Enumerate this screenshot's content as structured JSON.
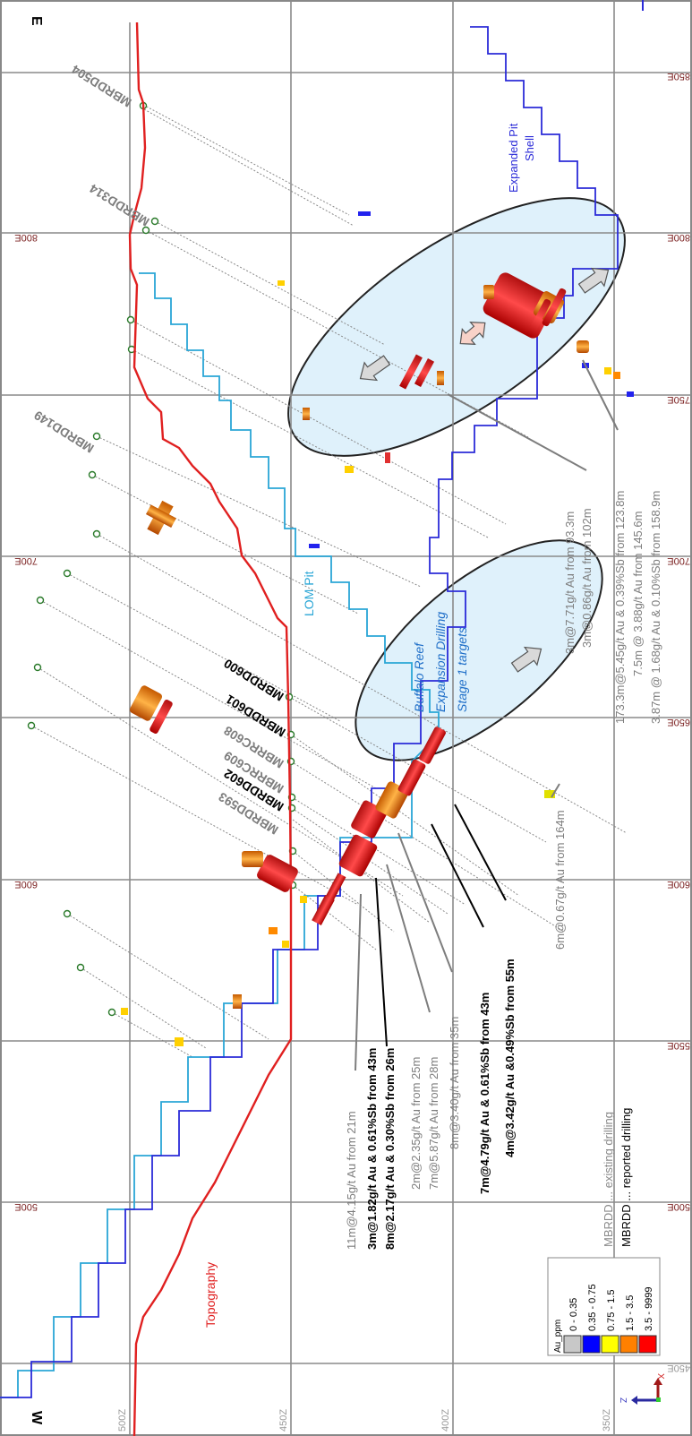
{
  "orientation": {
    "west": "W",
    "east": "E"
  },
  "eastings": [
    "850E",
    "800E",
    "750E",
    "700E",
    "650E",
    "600E",
    "550E",
    "500E",
    "450E"
  ],
  "elevations": [
    "500Z",
    "450Z",
    "400Z",
    "350Z"
  ],
  "features": {
    "topography": "Topography",
    "lom_pit": "LOM Pit",
    "expanded_pit_line1": "Expanded Pit",
    "expanded_pit_line2": "Shell",
    "target_line1": "Buffalo Reef",
    "target_line2": "Expansion Drilling",
    "target_line3": "Stage 1 targets"
  },
  "drillholes": {
    "d504": "MBRDD504",
    "d314": "MBRDD314",
    "d149": "MBRDD149",
    "d600": "MBRDD600",
    "d601": "MBRDD601",
    "rc608": "MBRRC608",
    "rc609": "MBRRC609",
    "d602": "MBRDD602",
    "d593": "MBRDD593"
  },
  "intercepts": {
    "i1": "11m@4.15g/t Au from 21m",
    "i2": "3m@1.82g/t Au & 0.61%Sb from 43m",
    "i3": "8m@2.17g/t Au & 0.30%Sb from 26m",
    "i4": "2m@2.35g/t Au from 25m",
    "i5": "7m@5.87g/t Au from 28m",
    "i6": "8m@3.40g/t Au from 35m",
    "i7": "7m@4.79g/t Au & 0.61%Sb from 43m",
    "i8": "4m@3.42g/t Au &0.49%Sb from 55m",
    "i9": "6m@0.67g/t Au from 164m",
    "i10": "3m@7.71g/t Au from 93.3m",
    "i11": "3m@0.86g/t Au from 102m",
    "i12": "173.3m@5.45g/t Au & 0.39%Sb from 123.8m",
    "i13": "7.5m @ 3.88g/t Au from 145.6m",
    "i14": "3.87m @ 1.68g/t Au & 0.10%Sb from 158.9m"
  },
  "key": {
    "existing": "MBRDD ... existing drilling",
    "reported": "MBRDD ... reported drilling"
  },
  "legend": {
    "title": "Au_ppm",
    "items": [
      {
        "label": "0 - 0.35",
        "color": "#c8c8c8"
      },
      {
        "label": "0.35 - 0.75",
        "color": "#0000ff"
      },
      {
        "label": "0.75 - 1.5",
        "color": "#ffff00"
      },
      {
        "label": "1.5 - 3.5",
        "color": "#ff8000"
      },
      {
        "label": "3.5 - 9999",
        "color": "#ff0000"
      }
    ]
  },
  "axes_triad": {
    "x": "X",
    "z": "Z"
  },
  "colors": {
    "topography": "#e02020",
    "lom_pit": "#2aa6d6",
    "expanded_pit": "#2b2bd8",
    "target_zone": "#dff1fb"
  }
}
